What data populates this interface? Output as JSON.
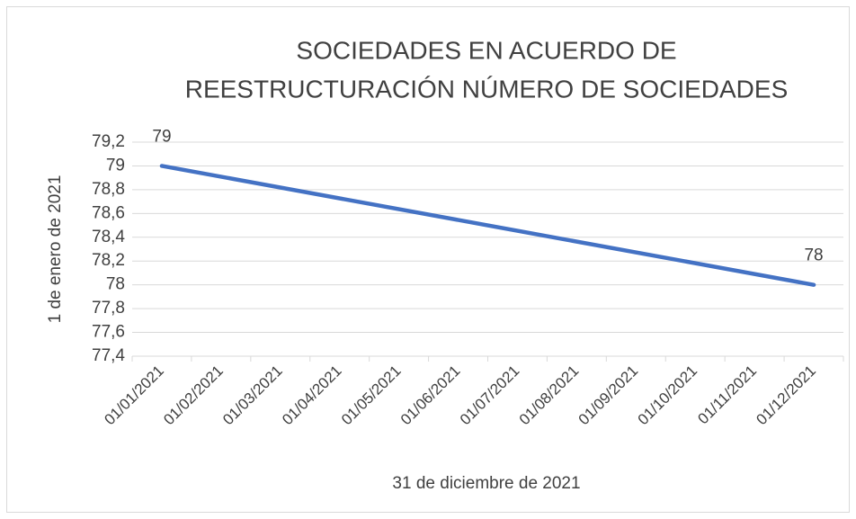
{
  "chart_data": {
    "type": "line",
    "title": [
      "SOCIEDADES EN ACUERDO DE",
      "REESTRUCTURACIÓN NÚMERO DE SOCIEDADES"
    ],
    "x_label": "31 de diciembre de 2021",
    "y_label": "1 de enero de 2021",
    "xticks": [
      "01/01/2021",
      "01/02/2021",
      "01/03/2021",
      "01/04/2021",
      "01/05/2021",
      "01/06/2021",
      "01/07/2021",
      "01/08/2021",
      "01/09/2021",
      "01/10/2021",
      "01/11/2021",
      "01/12/2021"
    ],
    "x": [
      "01/01/2021",
      "31/12/2021"
    ],
    "series": [
      {
        "name": "Número de sociedades",
        "color": "#4472c4",
        "values": [
          79,
          78
        ]
      }
    ],
    "ylim": [
      77.4,
      79.2
    ],
    "yticks": [
      {
        "value": 77.4,
        "label": "77,4"
      },
      {
        "value": 77.6,
        "label": "77,6"
      },
      {
        "value": 77.8,
        "label": "77,8"
      },
      78,
      {
        "value": 78.2,
        "label": "78,2"
      },
      {
        "value": 78.4,
        "label": "78,4"
      },
      {
        "value": 78.6,
        "label": "78,6"
      },
      {
        "value": 78.8,
        "label": "78,8"
      },
      79,
      {
        "value": 79.2,
        "label": "79,2"
      }
    ],
    "grid": true,
    "legend": false
  }
}
